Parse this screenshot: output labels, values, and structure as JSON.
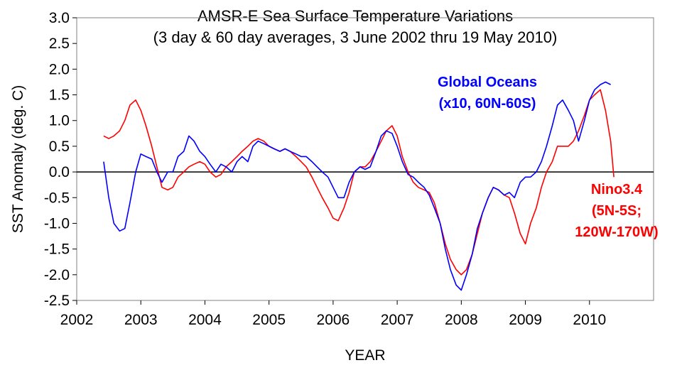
{
  "chart_data": {
    "type": "line",
    "title": "AMSR-E Sea Surface Temperature Variations",
    "subtitle": "(3 day & 60 day averages, 3 June 2002 thru 19 May 2010)",
    "xlabel": "YEAR",
    "ylabel": "SST Anomaly (deg. C)",
    "xlim": [
      2002,
      2011
    ],
    "ylim": [
      -2.5,
      3.0
    ],
    "x_ticks": [
      "2002",
      "2003",
      "2004",
      "2005",
      "2006",
      "2007",
      "2008",
      "2009",
      "2010"
    ],
    "y_ticks": [
      "3.0",
      "2.5",
      "2.0",
      "1.5",
      "1.0",
      "0.5",
      "0.0",
      "-0.5",
      "-1.0",
      "-1.5",
      "-2.0",
      "-2.5"
    ],
    "zero_line": true,
    "colors": {
      "global": "#0000ff",
      "nino": "#ff0000"
    },
    "annotations": {
      "global_line1": "Global Oceans",
      "global_line2": "(x10, 60N-60S)",
      "nino_line1": "Nino3.4",
      "nino_line2": "(5N-5S;",
      "nino_line3": "120W-170W)"
    },
    "series": [
      {
        "name": "Global Oceans",
        "x": [
          2002.42,
          2002.5,
          2002.58,
          2002.67,
          2002.75,
          2002.83,
          2002.92,
          2003.0,
          2003.08,
          2003.17,
          2003.25,
          2003.33,
          2003.42,
          2003.5,
          2003.58,
          2003.67,
          2003.75,
          2003.83,
          2003.92,
          2004.0,
          2004.08,
          2004.17,
          2004.25,
          2004.33,
          2004.42,
          2004.5,
          2004.58,
          2004.67,
          2004.75,
          2004.83,
          2004.92,
          2005.0,
          2005.08,
          2005.17,
          2005.25,
          2005.33,
          2005.42,
          2005.5,
          2005.58,
          2005.67,
          2005.75,
          2005.83,
          2005.92,
          2006.0,
          2006.08,
          2006.17,
          2006.25,
          2006.33,
          2006.42,
          2006.5,
          2006.58,
          2006.67,
          2006.75,
          2006.83,
          2006.92,
          2007.0,
          2007.08,
          2007.17,
          2007.25,
          2007.33,
          2007.42,
          2007.5,
          2007.58,
          2007.67,
          2007.75,
          2007.83,
          2007.92,
          2008.0,
          2008.08,
          2008.17,
          2008.25,
          2008.33,
          2008.42,
          2008.5,
          2008.58,
          2008.67,
          2008.75,
          2008.83,
          2008.92,
          2009.0,
          2009.08,
          2009.17,
          2009.25,
          2009.33,
          2009.42,
          2009.5,
          2009.58,
          2009.67,
          2009.75,
          2009.83,
          2009.92,
          2010.0,
          2010.08,
          2010.17,
          2010.25,
          2010.33
        ],
        "values": [
          0.2,
          -0.5,
          -1.0,
          -1.15,
          -1.1,
          -0.6,
          0.0,
          0.35,
          0.3,
          0.25,
          0.0,
          -0.2,
          0.0,
          0.0,
          0.3,
          0.4,
          0.7,
          0.6,
          0.4,
          0.3,
          0.15,
          0.0,
          0.15,
          0.1,
          0.0,
          0.2,
          0.3,
          0.2,
          0.5,
          0.6,
          0.55,
          0.5,
          0.45,
          0.4,
          0.45,
          0.4,
          0.35,
          0.3,
          0.3,
          0.2,
          0.1,
          0.0,
          -0.1,
          -0.3,
          -0.5,
          -0.5,
          -0.2,
          0.0,
          0.1,
          0.05,
          0.1,
          0.4,
          0.7,
          0.8,
          0.75,
          0.5,
          0.2,
          -0.05,
          -0.1,
          -0.2,
          -0.3,
          -0.45,
          -0.7,
          -1.0,
          -1.5,
          -1.9,
          -2.2,
          -2.3,
          -2.0,
          -1.6,
          -1.1,
          -0.8,
          -0.5,
          -0.3,
          -0.35,
          -0.45,
          -0.4,
          -0.5,
          -0.2,
          -0.1,
          -0.1,
          0.0,
          0.2,
          0.5,
          0.9,
          1.3,
          1.4,
          1.2,
          1.0,
          0.6,
          1.0,
          1.4,
          1.6,
          1.7,
          1.75,
          1.7
        ]
      },
      {
        "name": "Nino3.4",
        "x": [
          2002.42,
          2002.5,
          2002.58,
          2002.67,
          2002.75,
          2002.83,
          2002.92,
          2003.0,
          2003.08,
          2003.17,
          2003.25,
          2003.33,
          2003.42,
          2003.5,
          2003.58,
          2003.67,
          2003.75,
          2003.83,
          2003.92,
          2004.0,
          2004.08,
          2004.17,
          2004.25,
          2004.33,
          2004.42,
          2004.5,
          2004.58,
          2004.67,
          2004.75,
          2004.83,
          2004.92,
          2005.0,
          2005.08,
          2005.17,
          2005.25,
          2005.33,
          2005.42,
          2005.5,
          2005.58,
          2005.67,
          2005.75,
          2005.83,
          2005.92,
          2006.0,
          2006.08,
          2006.17,
          2006.25,
          2006.33,
          2006.42,
          2006.5,
          2006.58,
          2006.67,
          2006.75,
          2006.83,
          2006.92,
          2007.0,
          2007.08,
          2007.17,
          2007.25,
          2007.33,
          2007.42,
          2007.5,
          2007.58,
          2007.67,
          2007.75,
          2007.83,
          2007.92,
          2008.0,
          2008.08,
          2008.17,
          2008.25,
          2008.33,
          2008.42,
          2008.5,
          2008.58,
          2008.67,
          2008.75,
          2008.83,
          2008.92,
          2009.0,
          2009.08,
          2009.17,
          2009.25,
          2009.33,
          2009.42,
          2009.5,
          2009.58,
          2009.67,
          2009.75,
          2009.83,
          2009.92,
          2010.0,
          2010.08,
          2010.17,
          2010.25,
          2010.33,
          2010.38
        ],
        "values": [
          0.7,
          0.65,
          0.7,
          0.8,
          1.0,
          1.3,
          1.4,
          1.2,
          0.9,
          0.5,
          0.1,
          -0.3,
          -0.35,
          -0.3,
          -0.1,
          0.0,
          0.1,
          0.15,
          0.2,
          0.15,
          0.0,
          -0.1,
          -0.05,
          0.1,
          0.2,
          0.3,
          0.4,
          0.5,
          0.6,
          0.65,
          0.6,
          0.5,
          0.45,
          0.4,
          0.45,
          0.4,
          0.3,
          0.2,
          0.1,
          -0.1,
          -0.3,
          -0.5,
          -0.7,
          -0.9,
          -0.95,
          -0.7,
          -0.4,
          0.0,
          0.1,
          0.1,
          0.2,
          0.4,
          0.6,
          0.8,
          0.9,
          0.7,
          0.3,
          0.0,
          -0.2,
          -0.3,
          -0.35,
          -0.4,
          -0.6,
          -1.0,
          -1.4,
          -1.7,
          -1.9,
          -2.0,
          -1.9,
          -1.6,
          -1.2,
          -0.8,
          -0.5,
          -0.3,
          -0.35,
          -0.45,
          -0.5,
          -0.8,
          -1.2,
          -1.4,
          -1.0,
          -0.7,
          -0.3,
          0.0,
          0.2,
          0.5,
          0.5,
          0.5,
          0.6,
          0.8,
          1.1,
          1.4,
          1.5,
          1.6,
          1.2,
          0.6,
          -0.1
        ]
      }
    ]
  }
}
